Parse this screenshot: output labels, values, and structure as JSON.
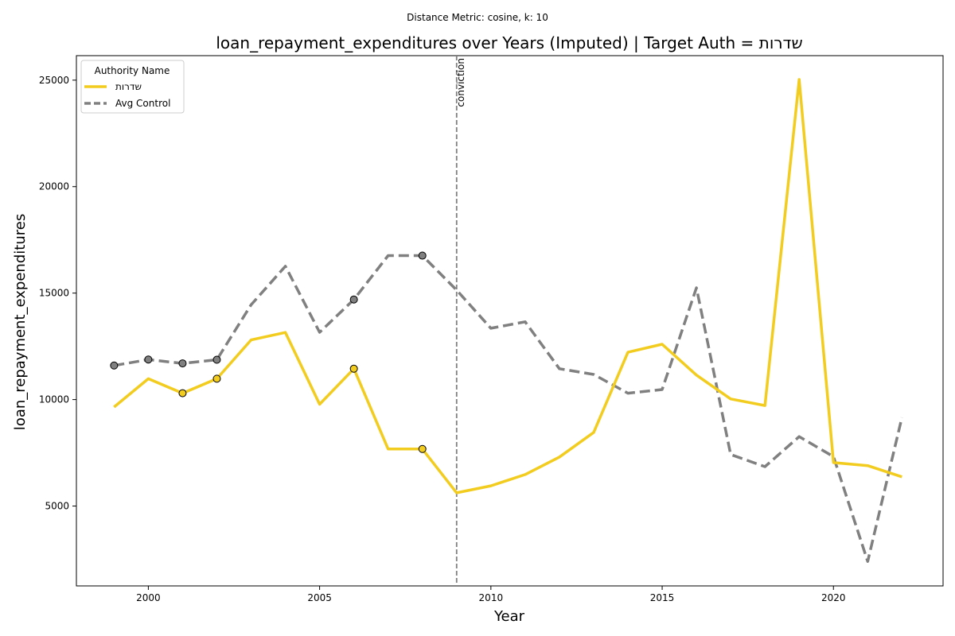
{
  "suptitle": "Distance Metric: cosine, k: 10",
  "chart_data": {
    "type": "line",
    "title": "loan_repayment_expenditures over Years (Imputed) | Target Auth = שדרות",
    "xlabel": "Year",
    "ylabel": "loan_repayment_expenditures",
    "xlim": [
      1997.9,
      2023.2
    ],
    "ylim": [
      1250,
      26150
    ],
    "xticks": [
      2000,
      2005,
      2010,
      2015,
      2020
    ],
    "yticks": [
      5000,
      10000,
      15000,
      20000,
      25000
    ],
    "grid": false,
    "legend": {
      "title": "Authority Name",
      "position": "top-left"
    },
    "x": [
      1999,
      2000,
      2001,
      2002,
      2003,
      2004,
      2005,
      2006,
      2007,
      2008,
      2009,
      2010,
      2011,
      2012,
      2013,
      2014,
      2015,
      2016,
      2017,
      2018,
      2019,
      2020,
      2021,
      2022
    ],
    "series": [
      {
        "name": "שדרות",
        "color": "#f2cc1f",
        "style": "solid",
        "values": [
          9650,
          10980,
          10300,
          10980,
          12800,
          13150,
          9780,
          11450,
          7680,
          7680,
          5620,
          5950,
          6480,
          7300,
          8460,
          12220,
          12600,
          11150,
          10030,
          9720,
          25030,
          7040,
          6900,
          6370
        ],
        "markers_x": [
          2001,
          2002,
          2006,
          2008
        ]
      },
      {
        "name": "Avg Control",
        "color": "#808080",
        "style": "dashed",
        "values": [
          11600,
          11880,
          11700,
          11870,
          14450,
          16260,
          13160,
          14700,
          16760,
          16760,
          15140,
          13350,
          13650,
          11450,
          11180,
          10300,
          10470,
          15250,
          7420,
          6850,
          8260,
          7320,
          2400,
          9160
        ],
        "markers_x": [
          1999,
          2000,
          2001,
          2002,
          2006,
          2008
        ]
      }
    ],
    "annotations": [
      {
        "x": 2009,
        "text": "conviction",
        "style": "dashed",
        "color": "#808080"
      }
    ]
  }
}
